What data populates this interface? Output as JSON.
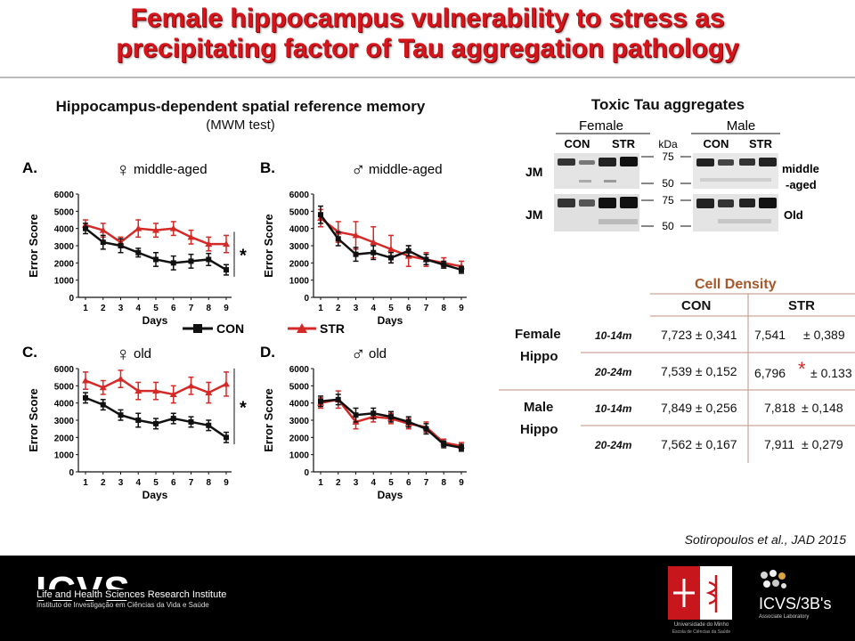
{
  "slide": {
    "title_line1": "Female hippocampus vulnerability to stress as",
    "title_line2": "precipitating factor of Tau aggregation pathology",
    "section_title": "Hippocampus-dependent spatial reference memory",
    "section_subtitle": "(MWM test)",
    "citation": "Sotiropoulos et al., JAD 2015"
  },
  "colors": {
    "con": "#111111",
    "str": "#d42a27",
    "title": "#d5141b",
    "cell_density_title": "#a5582a",
    "footer": "#000000",
    "uminho_red": "#c8161d"
  },
  "legend": {
    "con_label": "CON",
    "str_label": "STR"
  },
  "chart_data": [
    {
      "type": "line",
      "panel_label": "A.",
      "sex_symbol": "♀",
      "title": "middle-aged",
      "xlabel": "Days",
      "ylabel": "Error Score",
      "x": [
        1,
        2,
        3,
        4,
        5,
        6,
        7,
        8,
        9
      ],
      "ylim": [
        0,
        6000
      ],
      "yticks": [
        "0",
        "1000",
        "2000",
        "3000",
        "4000",
        "5000",
        "6000"
      ],
      "xticks": [
        "1",
        "2",
        "3",
        "4",
        "5",
        "6",
        "7",
        "8",
        "9"
      ],
      "significance": "*",
      "series": [
        {
          "name": "CON",
          "values": [
            4000,
            3200,
            3000,
            2600,
            2200,
            2000,
            2100,
            2200,
            1600
          ],
          "err": [
            300,
            400,
            400,
            250,
            400,
            400,
            400,
            350,
            300
          ]
        },
        {
          "name": "STR",
          "values": [
            4200,
            3900,
            3200,
            4000,
            3900,
            4000,
            3500,
            3100,
            3100
          ],
          "err": [
            300,
            400,
            300,
            500,
            400,
            400,
            400,
            400,
            500
          ]
        }
      ]
    },
    {
      "type": "line",
      "panel_label": "B.",
      "sex_symbol": "♂",
      "title": "middle-aged",
      "xlabel": "Days",
      "ylabel": "Error Score",
      "x": [
        1,
        2,
        3,
        4,
        5,
        6,
        7,
        8,
        9
      ],
      "ylim": [
        0,
        6000
      ],
      "yticks": [
        "0",
        "1000",
        "2000",
        "3000",
        "4000",
        "5000",
        "6000"
      ],
      "xticks": [
        "1",
        "2",
        "3",
        "4",
        "5",
        "6",
        "7",
        "8",
        "9"
      ],
      "significance": "",
      "series": [
        {
          "name": "CON",
          "values": [
            4800,
            3400,
            2500,
            2600,
            2300,
            2700,
            2200,
            1900,
            1600
          ],
          "err": [
            500,
            400,
            400,
            400,
            300,
            300,
            300,
            200,
            200
          ]
        },
        {
          "name": "STR",
          "values": [
            4600,
            3800,
            3600,
            3200,
            2800,
            2400,
            2200,
            2000,
            1800
          ],
          "err": [
            500,
            600,
            800,
            900,
            800,
            600,
            400,
            300,
            300
          ]
        }
      ]
    },
    {
      "type": "line",
      "panel_label": "C.",
      "sex_symbol": "♀",
      "title": "old",
      "xlabel": "Days",
      "ylabel": "Error Score",
      "x": [
        1,
        2,
        3,
        4,
        5,
        6,
        7,
        8,
        9
      ],
      "ylim": [
        0,
        6000
      ],
      "yticks": [
        "0",
        "1000",
        "2000",
        "3000",
        "4000",
        "5000",
        "6000"
      ],
      "xticks": [
        "1",
        "2",
        "3",
        "4",
        "5",
        "6",
        "7",
        "8",
        "9"
      ],
      "significance": "*",
      "series": [
        {
          "name": "CON",
          "values": [
            4300,
            3900,
            3300,
            3000,
            2800,
            3100,
            2900,
            2700,
            2000
          ],
          "err": [
            300,
            300,
            300,
            400,
            300,
            300,
            300,
            300,
            300
          ]
        },
        {
          "name": "STR",
          "values": [
            5300,
            4900,
            5400,
            4700,
            4700,
            4500,
            5000,
            4600,
            5100
          ],
          "err": [
            500,
            400,
            500,
            500,
            500,
            500,
            500,
            600,
            700
          ]
        }
      ]
    },
    {
      "type": "line",
      "panel_label": "D.",
      "sex_symbol": "♂",
      "title": "old",
      "xlabel": "Days",
      "ylabel": "Error Score",
      "x": [
        1,
        2,
        3,
        4,
        5,
        6,
        7,
        8,
        9
      ],
      "ylim": [
        0,
        6000
      ],
      "yticks": [
        "0",
        "1000",
        "2000",
        "3000",
        "4000",
        "5000",
        "6000"
      ],
      "xticks": [
        "1",
        "2",
        "3",
        "4",
        "5",
        "6",
        "7",
        "8",
        "9"
      ],
      "significance": "",
      "series": [
        {
          "name": "CON",
          "values": [
            4100,
            4200,
            3300,
            3400,
            3200,
            2900,
            2500,
            1600,
            1400
          ],
          "err": [
            300,
            300,
            400,
            300,
            300,
            300,
            300,
            200,
            200
          ]
        },
        {
          "name": "STR",
          "values": [
            4000,
            4200,
            2900,
            3200,
            3100,
            2800,
            2600,
            1700,
            1500
          ],
          "err": [
            300,
            500,
            400,
            300,
            300,
            300,
            300,
            200,
            200
          ]
        }
      ]
    }
  ],
  "western_blot": {
    "title": "Toxic Tau aggregates",
    "female_label": "Female",
    "male_label": "Male",
    "con_label": "CON",
    "str_label": "STR",
    "kda_label": "kDa",
    "marker_75": "75",
    "marker_50": "50",
    "row_label": "JM",
    "row1_right": "middle",
    "row1_right2": "-aged",
    "row2_right": "Old"
  },
  "cell_density": {
    "title": "Cell Density",
    "col_con": "CON",
    "col_str": "STR",
    "groups": [
      {
        "name_line1": "Female",
        "name_line2": "Hippo",
        "rows": [
          {
            "age": "10-14m",
            "con": "7,723 ± 0,341",
            "str_value": "7,541",
            "str_sig": "",
            "str_err": "± 0,389"
          },
          {
            "age": "20-24m",
            "con": "7,539 ± 0,152",
            "str_value": "6,796",
            "str_sig": "*",
            "str_err": "± 0.133"
          }
        ]
      },
      {
        "name_line1": "Male",
        "name_line2": "Hippo",
        "rows": [
          {
            "age": "10-14m",
            "con": "7,849 ± 0,256",
            "str_value": "7,818",
            "str_sig": "",
            "str_err": "± 0,148"
          },
          {
            "age": "20-24m",
            "con": "7,562 ± 0,167",
            "str_value": "7,911",
            "str_sig": "",
            "str_err": "± 0,279"
          }
        ]
      }
    ]
  },
  "footer": {
    "icvs": "ICVS",
    "icvs_line1": "Life and Health Sciences Research Institute",
    "icvs_line2": "Instituto de Investigação em Ciências da Vida e Saúde",
    "uminho_line1": "Universidade do Minho",
    "uminho_line2": "Escola de Ciências da Saúde",
    "icvs3b": "ICVS/3B's",
    "icvs3b_sub": "Associate Laboratory"
  }
}
